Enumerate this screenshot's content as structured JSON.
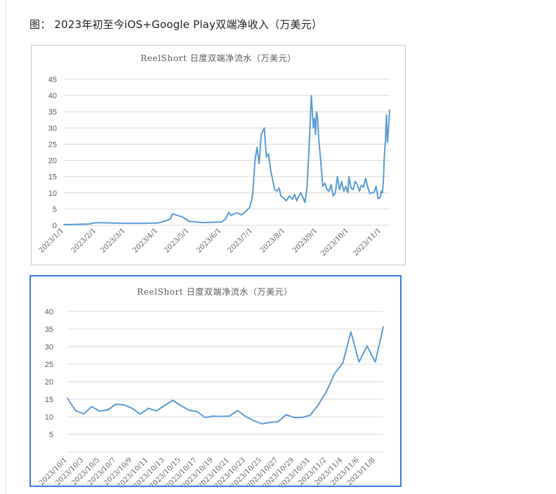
{
  "caption": "图： 2023年初至今iOS+Google Play双端净收入（万美元）",
  "chart_data": [
    {
      "type": "line",
      "title": "ReelShort 日度双端净流水（万美元）",
      "ylim": [
        0,
        45
      ],
      "yticks": [
        "0",
        "5",
        "10",
        "15",
        "20",
        "25",
        "30",
        "35",
        "40",
        "45"
      ],
      "grid": "horizontal",
      "xticks": [
        "2023/1/1",
        "2023/2/1",
        "2023/3/1",
        "2023/4/1",
        "2023/5/1",
        "2023/6/1",
        "2023/7/1",
        "2023/8/1",
        "2023/9/1",
        "2023/10/1",
        "2023/11/1"
      ],
      "x": [
        "2023/1/1",
        "2023/1/15",
        "2023/1/25",
        "2023/2/1",
        "2023/2/15",
        "2023/3/1",
        "2023/3/15",
        "2023/4/1",
        "2023/4/10",
        "2023/4/13",
        "2023/4/15",
        "2023/4/20",
        "2023/4/25",
        "2023/5/1",
        "2023/5/15",
        "2023/6/1",
        "2023/6/5",
        "2023/6/8",
        "2023/6/10",
        "2023/6/13",
        "2023/6/16",
        "2023/6/20",
        "2023/6/25",
        "2023/6/28",
        "2023/6/30",
        "2023/7/1",
        "2023/7/3",
        "2023/7/5",
        "2023/7/7",
        "2023/7/9",
        "2023/7/12",
        "2023/7/14",
        "2023/7/16",
        "2023/7/18",
        "2023/7/20",
        "2023/7/22",
        "2023/7/24",
        "2023/7/26",
        "2023/7/28",
        "2023/7/30",
        "2023/8/2",
        "2023/8/5",
        "2023/8/8",
        "2023/8/10",
        "2023/8/12",
        "2023/8/14",
        "2023/8/16",
        "2023/8/18",
        "2023/8/20",
        "2023/8/22",
        "2023/8/24",
        "2023/8/26",
        "2023/8/28",
        "2023/8/29",
        "2023/8/30",
        "2023/8/31",
        "2023/9/1",
        "2023/9/2",
        "2023/9/4",
        "2023/9/6",
        "2023/9/8",
        "2023/9/10",
        "2023/9/12",
        "2023/9/14",
        "2023/9/16",
        "2023/9/18",
        "2023/9/20",
        "2023/9/22",
        "2023/9/24",
        "2023/9/26",
        "2023/9/28",
        "2023/9/30",
        "2023/10/1",
        "2023/10/3",
        "2023/10/5",
        "2023/10/7",
        "2023/10/9",
        "2023/10/11",
        "2023/10/13",
        "2023/10/15",
        "2023/10/17",
        "2023/10/19",
        "2023/10/21",
        "2023/10/23",
        "2023/10/25",
        "2023/10/27",
        "2023/10/29",
        "2023/10/31",
        "2023/11/1",
        "2023/11/2",
        "2023/11/3",
        "2023/11/4",
        "2023/11/5",
        "2023/11/6",
        "2023/11/7",
        "2023/11/8",
        "2023/11/9"
      ],
      "values": [
        0.2,
        0.3,
        0.4,
        0.8,
        0.7,
        0.6,
        0.6,
        0.7,
        1.5,
        2.0,
        3.5,
        3.0,
        2.5,
        1.2,
        0.8,
        1.0,
        2.0,
        4.0,
        3.0,
        3.5,
        3.8,
        3.2,
        4.5,
        5.5,
        8.0,
        10.0,
        20.0,
        24.0,
        19.0,
        28.0,
        30.0,
        21.0,
        22.0,
        17.0,
        14.0,
        11.0,
        10.5,
        11.5,
        9.0,
        8.5,
        7.5,
        9.0,
        8.0,
        9.5,
        7.5,
        9.0,
        10.0,
        8.5,
        7.0,
        12.0,
        25.0,
        40.0,
        30.0,
        33.0,
        28.0,
        35.0,
        33.0,
        27.0,
        20.0,
        12.0,
        13.0,
        11.0,
        10.5,
        12.5,
        9.0,
        10.0,
        15.0,
        11.0,
        13.5,
        10.5,
        12.0,
        10.0,
        15.0,
        11.5,
        11.0,
        13.5,
        12.5,
        10.5,
        12.3,
        11.8,
        14.5,
        11.8,
        9.8,
        10.0,
        10.1,
        12.0,
        8.2,
        8.5,
        10.5,
        10.0,
        13.5,
        22.0,
        26.0,
        34.0,
        25.6,
        30.0,
        35.5
      ]
    },
    {
      "type": "line",
      "title": "ReelShort 日度双端净流水（万美元）",
      "ylim": [
        0,
        40
      ],
      "yticks": [
        "5",
        "10",
        "15",
        "20",
        "25",
        "30",
        "35",
        "40"
      ],
      "grid": "horizontal",
      "x": [
        "2023/10/1",
        "2023/10/2",
        "2023/10/3",
        "2023/10/4",
        "2023/10/5",
        "2023/10/6",
        "2023/10/7",
        "2023/10/8",
        "2023/10/9",
        "2023/10/10",
        "2023/10/11",
        "2023/10/12",
        "2023/10/13",
        "2023/10/14",
        "2023/10/15",
        "2023/10/16",
        "2023/10/17",
        "2023/10/18",
        "2023/10/19",
        "2023/10/20",
        "2023/10/21",
        "2023/10/22",
        "2023/10/23",
        "2023/10/24",
        "2023/10/25",
        "2023/10/26",
        "2023/10/27",
        "2023/10/28",
        "2023/10/29",
        "2023/10/30",
        "2023/10/31",
        "2023/11/1",
        "2023/11/2",
        "2023/11/3",
        "2023/11/4",
        "2023/11/5",
        "2023/11/6",
        "2023/11/7",
        "2023/11/8",
        "2023/11/9"
      ],
      "xticks": [
        "2023/10/1",
        "2023/10/3",
        "2023/10/5",
        "2023/10/7",
        "2023/10/9",
        "2023/10/11",
        "2023/10/13",
        "2023/10/15",
        "2023/10/17",
        "2023/10/19",
        "2023/10/21",
        "2023/10/23",
        "2023/10/25",
        "2023/10/27",
        "2023/10/29",
        "2023/10/31",
        "2023/11/2",
        "2023/11/4",
        "2023/11/6",
        "2023/11/8"
      ],
      "values": [
        15.3,
        11.8,
        10.8,
        12.9,
        11.6,
        12.0,
        13.6,
        13.4,
        12.4,
        10.8,
        12.4,
        11.7,
        13.2,
        14.7,
        13.2,
        11.9,
        11.5,
        9.8,
        10.2,
        10.1,
        10.2,
        11.8,
        10.1,
        8.9,
        8.0,
        8.4,
        8.6,
        10.6,
        9.8,
        9.8,
        10.5,
        13.5,
        17.3,
        22.4,
        25.3,
        34.2,
        25.6,
        30.2,
        25.6,
        35.6
      ]
    }
  ],
  "colors": {
    "line": "#5b9bd5",
    "grid": "#d9d9d9",
    "selection": "#3a7bdc"
  }
}
